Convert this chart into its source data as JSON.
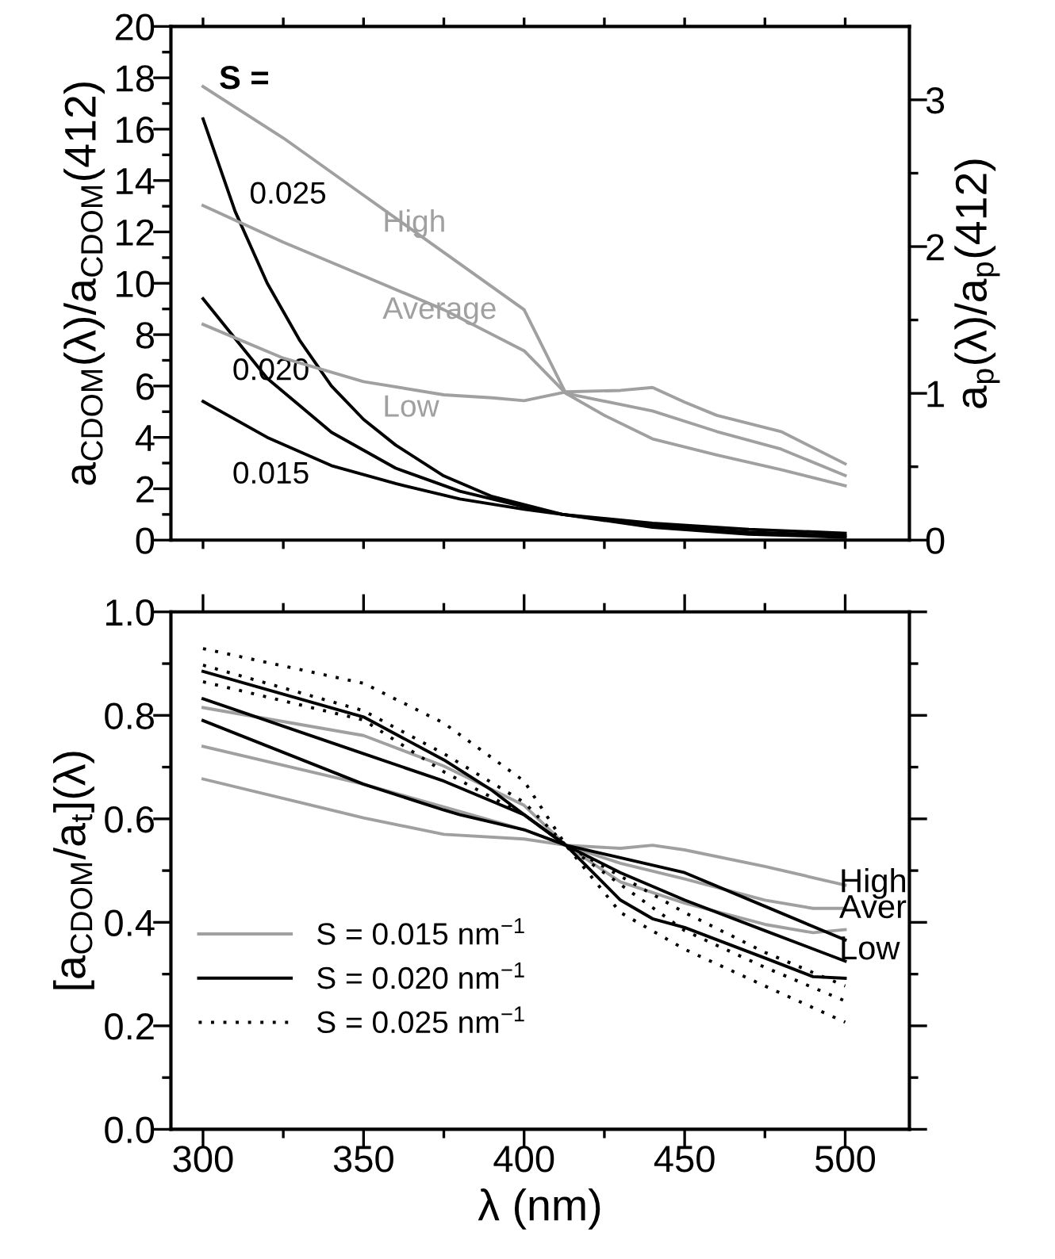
{
  "chart_data": [
    {
      "type": "line",
      "ylabel": "a$_{CDOM}$(λ)/a$_{CDOM}$(412)",
      "y2label": "a$_{p}$(λ)/a$_{p}$(412)",
      "xlim": [
        290,
        520
      ],
      "xticks": [
        {
          "value": 300,
          "label": null
        },
        {
          "value": 325,
          "label": null
        },
        {
          "value": 350,
          "label": null
        },
        {
          "value": 375,
          "label": null
        },
        {
          "value": 400,
          "label": null
        },
        {
          "value": 425,
          "label": null
        },
        {
          "value": 450,
          "label": null
        },
        {
          "value": 475,
          "label": null
        },
        {
          "value": 500,
          "label": null
        }
      ],
      "ylim": [
        0,
        20
      ],
      "yticks": [
        0,
        {
          "value": 1,
          "label": null
        },
        2,
        {
          "value": 3,
          "label": null
        },
        4,
        {
          "value": 5,
          "label": null
        },
        6,
        {
          "value": 7,
          "label": null
        },
        8,
        {
          "value": 9,
          "label": null
        },
        10,
        {
          "value": 11,
          "label": null
        },
        12,
        {
          "value": 13,
          "label": null
        },
        14,
        {
          "value": 15,
          "label": null
        },
        16,
        {
          "value": 17,
          "label": null
        },
        18,
        {
          "value": 19,
          "label": null
        },
        20
      ],
      "y2lim": [
        0,
        3.5
      ],
      "y2ticks": [
        0,
        {
          "value": 0.5,
          "label": null
        },
        1,
        {
          "value": 1.5,
          "label": null
        },
        2,
        {
          "value": 2.5,
          "label": null
        },
        3
      ],
      "tick_labels": "y",
      "grid": false,
      "legend": false,
      "series": [
        {
          "name": "0.025",
          "color": "#000000",
          "x": [
            300,
            310,
            320,
            330,
            340,
            350,
            360,
            375,
            390,
            412,
            440,
            470,
            500
          ],
          "values": [
            16.4,
            12.8,
            10.0,
            7.8,
            6.0,
            4.7,
            3.7,
            2.5,
            1.7,
            1.0,
            0.5,
            0.23,
            0.11
          ]
        },
        {
          "name": "0.020",
          "color": "#000000",
          "x": [
            300,
            320,
            340,
            360,
            380,
            400,
            412,
            440,
            470,
            500
          ],
          "values": [
            9.4,
            6.3,
            4.2,
            2.8,
            1.9,
            1.3,
            1.0,
            0.57,
            0.31,
            0.17
          ]
        },
        {
          "name": "0.015",
          "color": "#000000",
          "x": [
            300,
            320,
            340,
            360,
            380,
            400,
            412,
            440,
            470,
            500
          ],
          "values": [
            5.4,
            4.0,
            2.9,
            2.2,
            1.6,
            1.2,
            1.0,
            0.66,
            0.42,
            0.27
          ]
        },
        {
          "name": "High",
          "color": "#a0a0a0",
          "axis": "y2",
          "x": [
            300,
            325,
            350,
            375,
            400,
            413,
            425,
            440,
            460,
            480,
            500
          ],
          "values": [
            3.09,
            2.74,
            2.35,
            1.96,
            1.57,
            1.0,
            0.85,
            0.69,
            0.58,
            0.48,
            0.37
          ]
        },
        {
          "name": "Average",
          "color": "#a0a0a0",
          "axis": "y2",
          "x": [
            300,
            325,
            350,
            375,
            400,
            413,
            440,
            460,
            480,
            500
          ],
          "values": [
            2.28,
            2.03,
            1.8,
            1.57,
            1.29,
            1.0,
            0.88,
            0.74,
            0.62,
            0.44
          ]
        },
        {
          "name": "Low",
          "color": "#a0a0a0",
          "axis": "y2",
          "x": [
            300,
            325,
            350,
            375,
            390,
            400,
            413,
            430,
            440,
            450,
            460,
            480,
            500
          ],
          "values": [
            1.47,
            1.24,
            1.08,
            0.99,
            0.97,
            0.95,
            1.01,
            1.02,
            1.04,
            0.94,
            0.85,
            0.74,
            0.52
          ]
        }
      ],
      "annotations": [
        "S ="
      ]
    },
    {
      "type": "line",
      "xlabel": "λ (nm)",
      "ylabel": "[a$_{CDOM}$/a$_{t}$](λ)",
      "xlim": [
        290,
        520
      ],
      "xticks": [
        300,
        {
          "value": 325,
          "label": null
        },
        350,
        {
          "value": 375,
          "label": null
        },
        400,
        {
          "value": 425,
          "label": null
        },
        450,
        {
          "value": 475,
          "label": null
        },
        500
      ],
      "ylim": [
        0,
        1
      ],
      "yticks": [
        {
          "value": 0,
          "label": "0.0"
        },
        {
          "value": 0.1,
          "label": null
        },
        0.2,
        {
          "value": 0.3,
          "label": null
        },
        0.4,
        {
          "value": 0.5,
          "label": null
        },
        0.6,
        {
          "value": 0.7,
          "label": null
        },
        0.8,
        {
          "value": 0.9,
          "label": null
        },
        {
          "value": 1,
          "label": "1.0"
        }
      ],
      "grid": false,
      "legend": "bottom left",
      "series": [
        {
          "name": "S = 0.015 nm$^{−1}$",
          "color": "#a0a0a0",
          "x": [
            300,
            350,
            375,
            400,
            413,
            430,
            440,
            450,
            475,
            500
          ],
          "values": [
            0.677,
            0.602,
            0.57,
            0.561,
            0.549,
            0.543,
            0.549,
            0.54,
            0.508,
            0.472
          ]
        },
        {
          "color": "#a0a0a0",
          "x": [
            300,
            350,
            375,
            400,
            413,
            430,
            450,
            475,
            490,
            500
          ],
          "values": [
            0.74,
            0.667,
            0.623,
            0.579,
            0.549,
            0.514,
            0.484,
            0.443,
            0.427,
            0.427
          ]
        },
        {
          "color": "#a0a0a0",
          "x": [
            300,
            350,
            375,
            400,
            413,
            430,
            450,
            475,
            490,
            500
          ],
          "values": [
            0.815,
            0.761,
            0.702,
            0.626,
            0.549,
            0.478,
            0.437,
            0.396,
            0.38,
            0.386
          ]
        },
        {
          "name": "S = 0.020 nm$^{−1}$",
          "color": "#000000",
          "x": [
            300,
            350,
            375,
            380,
            400,
            413,
            430,
            450,
            475,
            500
          ],
          "values": [
            0.79,
            0.667,
            0.617,
            0.608,
            0.579,
            0.549,
            0.525,
            0.496,
            0.431,
            0.366
          ]
        },
        {
          "color": "#000000",
          "x": [
            300,
            350,
            375,
            400,
            413,
            430,
            450,
            475,
            500
          ],
          "values": [
            0.832,
            0.726,
            0.673,
            0.608,
            0.549,
            0.496,
            0.443,
            0.384,
            0.325
          ]
        },
        {
          "color": "#000000",
          "x": [
            300,
            350,
            375,
            390,
            400,
            413,
            430,
            440,
            450,
            475,
            490,
            500
          ],
          "values": [
            0.885,
            0.797,
            0.714,
            0.655,
            0.608,
            0.549,
            0.443,
            0.407,
            0.39,
            0.331,
            0.295,
            0.292
          ]
        },
        {
          "name": "S = 0.025 nm$^{−1}$",
          "color": "#000000",
          "line_style": "dotted",
          "x": [
            300,
            350,
            375,
            400,
            413,
            430,
            450,
            475,
            500
          ],
          "values": [
            0.929,
            0.862,
            0.785,
            0.673,
            0.549,
            0.419,
            0.348,
            0.277,
            0.207
          ]
        },
        {
          "color": "#000000",
          "line_style": "dotted",
          "x": [
            300,
            350,
            375,
            400,
            413,
            450,
            475,
            500
          ],
          "values": [
            0.897,
            0.809,
            0.726,
            0.632,
            0.549,
            0.384,
            0.313,
            0.248
          ]
        },
        {
          "color": "#000000",
          "line_style": "dotted",
          "x": [
            300,
            350,
            375,
            400,
            413,
            450,
            475,
            500
          ],
          "values": [
            0.865,
            0.791,
            0.691,
            0.608,
            0.549,
            0.419,
            0.342,
            0.277
          ]
        }
      ],
      "annotations": [
        "High",
        "Aver",
        "Low"
      ]
    }
  ]
}
